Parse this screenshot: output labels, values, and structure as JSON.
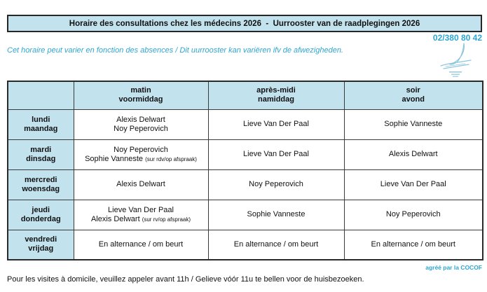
{
  "page": {
    "title": "Horaire des consultations chez les médecins 2026  -  Uurrooster van de raadplegingen 2026",
    "phone": "02/380 80 42",
    "notice": "Cet horaire peut varier en fonction des absences / Dit uurrooster kan variëren ifv de afwezigheden.",
    "approval": "agréé par la COCOF",
    "home_visits_note": "Pour les visites à domicile, veuillez appeler avant 11h / Gelieve vóór 11u te bellen voor de huisbezoeken."
  },
  "icons": {
    "logo": "seagull-sketch-logo"
  },
  "colors": {
    "accent_cyan": "#2da7d2",
    "table_blue": "#c2e2ee",
    "border_dark": "#3a3a3a",
    "logo_blue": "#8cc6de"
  },
  "schedule": {
    "columns": [
      {
        "fr": "matin",
        "nl": "voormiddag"
      },
      {
        "fr": "après-midi",
        "nl": "namiddag"
      },
      {
        "fr": "soir",
        "nl": "avond"
      }
    ],
    "rows": [
      {
        "day": {
          "fr": "lundi",
          "nl": "maandag"
        },
        "matin": [
          {
            "text": "Alexis Delwart"
          },
          {
            "text": "Noy Peperovich"
          }
        ],
        "apres_midi": [
          {
            "text": "Lieve Van Der Paal"
          }
        ],
        "soir": [
          {
            "text": "Sophie Vanneste"
          }
        ]
      },
      {
        "day": {
          "fr": "mardi",
          "nl": "dinsdag"
        },
        "matin": [
          {
            "text": "Noy Peperovich"
          },
          {
            "text": "Sophie Vanneste",
            "note": "(sur rdv/op afspraak)"
          }
        ],
        "apres_midi": [
          {
            "text": "Lieve Van Der Paal"
          }
        ],
        "soir": [
          {
            "text": "Alexis Delwart"
          }
        ]
      },
      {
        "day": {
          "fr": "mercredi",
          "nl": "woensdag"
        },
        "matin": [
          {
            "text": "Alexis Delwart"
          }
        ],
        "apres_midi": [
          {
            "text": "Noy Peperovich"
          }
        ],
        "soir": [
          {
            "text": "Lieve Van Der Paal"
          }
        ]
      },
      {
        "day": {
          "fr": "jeudi",
          "nl": "donderdag"
        },
        "matin": [
          {
            "text": "Lieve Van Der Paal"
          },
          {
            "text": "Alexis Delwart",
            "note": "(sur rv/op afspraak)"
          }
        ],
        "apres_midi": [
          {
            "text": "Sophie Vanneste"
          }
        ],
        "soir": [
          {
            "text": "Noy Peperovich"
          }
        ]
      },
      {
        "day": {
          "fr": "vendredi",
          "nl": "vrijdag"
        },
        "matin": [
          {
            "text": "En alternance / om beurt"
          }
        ],
        "apres_midi": [
          {
            "text": "En alternance / om beurt"
          }
        ],
        "soir": [
          {
            "text": "En alternance / om beurt"
          }
        ]
      }
    ]
  }
}
